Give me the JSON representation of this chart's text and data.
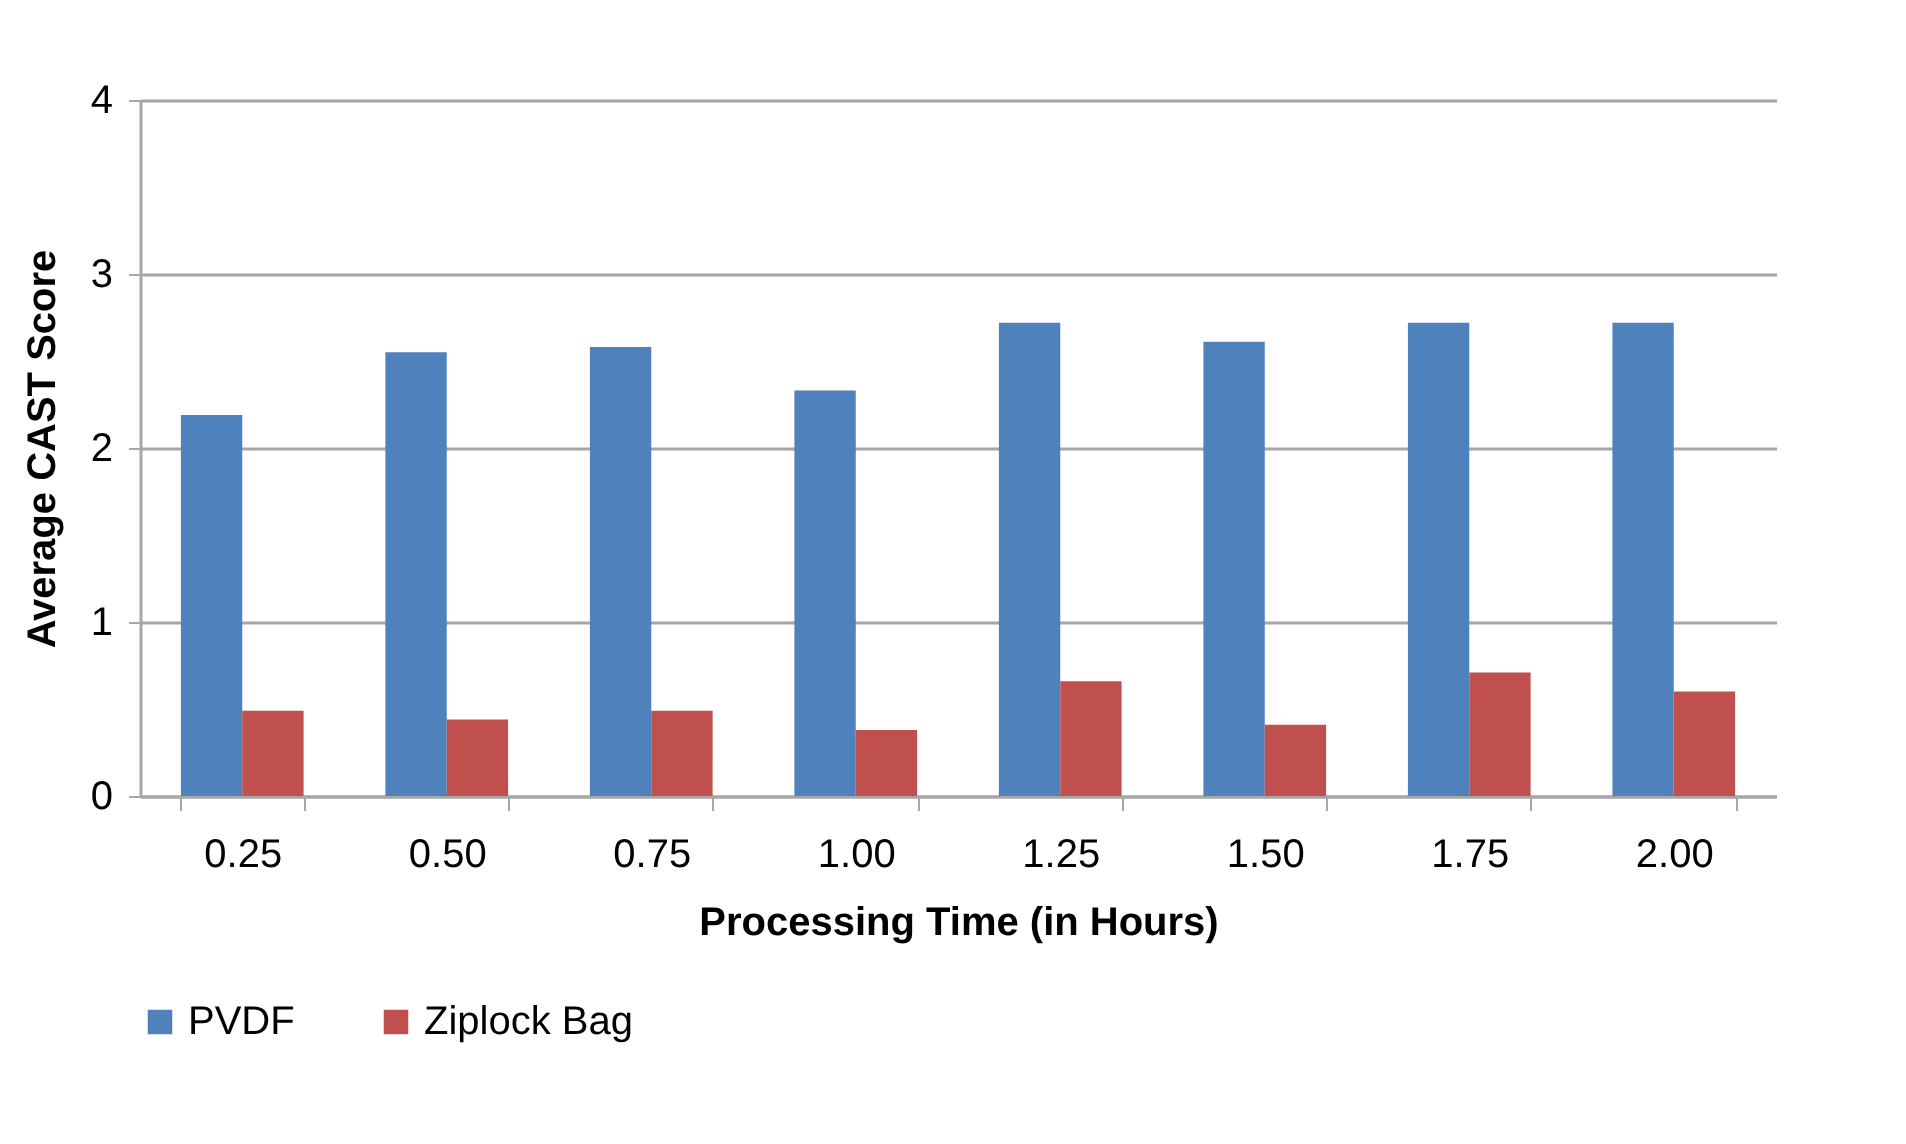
{
  "chart_data": {
    "type": "bar",
    "xlabel": "Processing Time (in Hours)",
    "ylabel": "Average CAST Score",
    "categories": [
      "0.25",
      "0.50",
      "0.75",
      "1.00",
      "1.25",
      "1.50",
      "1.75",
      "2.00"
    ],
    "series": [
      {
        "name": "PVDF",
        "color": "#4f81bd",
        "values": [
          2.19,
          2.55,
          2.58,
          2.33,
          2.72,
          2.61,
          2.72,
          2.72
        ]
      },
      {
        "name": "Ziplock Bag",
        "color": "#c0504d",
        "values": [
          0.49,
          0.44,
          0.49,
          0.38,
          0.66,
          0.41,
          0.71,
          0.6
        ]
      }
    ],
    "ylim": [
      0,
      4
    ],
    "yticks": [
      0,
      1,
      2,
      3,
      4
    ],
    "grid": "y",
    "legend": "bottom"
  }
}
